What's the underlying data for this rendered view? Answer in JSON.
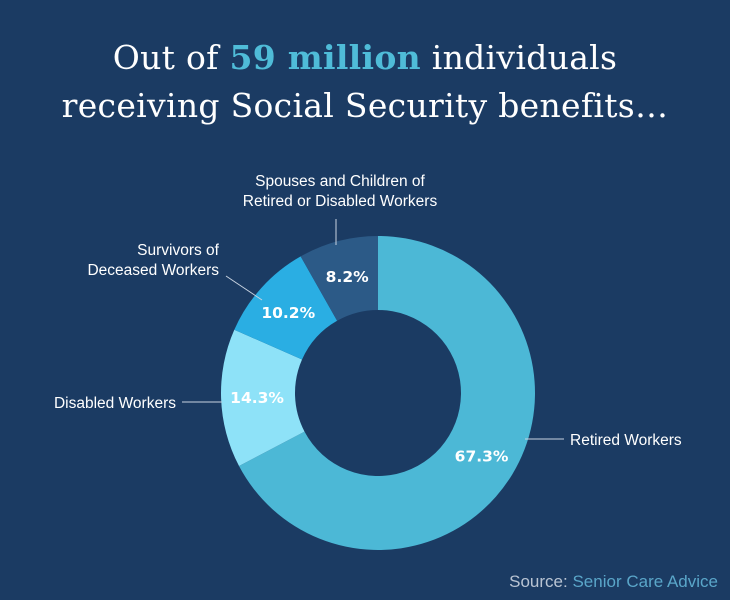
{
  "title": {
    "line1_prefix": "Out of ",
    "highlight": "59 million",
    "line1_suffix": " individuals",
    "line2": "receiving Social Security benefits…"
  },
  "colors": {
    "background": "#1b3b63",
    "highlight": "#4fbcd8"
  },
  "chart_data": {
    "type": "pie",
    "style": "donut",
    "categories": [
      "Retired Workers",
      "Disabled Workers",
      "Survivors of Deceased Workers",
      "Spouses and Children of Retired or Disabled Workers"
    ],
    "values": [
      67.3,
      14.3,
      10.2,
      8.2
    ],
    "value_labels": [
      "67.3%",
      "14.3%",
      "10.2%",
      "8.2%"
    ],
    "label_lines": [
      [
        "Retired Workers"
      ],
      [
        "Disabled Workers"
      ],
      [
        "Survivors of",
        "Deceased Workers"
      ],
      [
        "Spouses and Children of",
        "Retired or Disabled Workers"
      ]
    ],
    "colors": [
      "#4cb8d6",
      "#8ee2f8",
      "#2aaee3",
      "#2c5a87"
    ],
    "start": "12 o'clock",
    "direction": "clockwise",
    "labels": "outside with leader lines"
  },
  "source": {
    "label": "Source:",
    "value": "Senior Care Advice"
  }
}
